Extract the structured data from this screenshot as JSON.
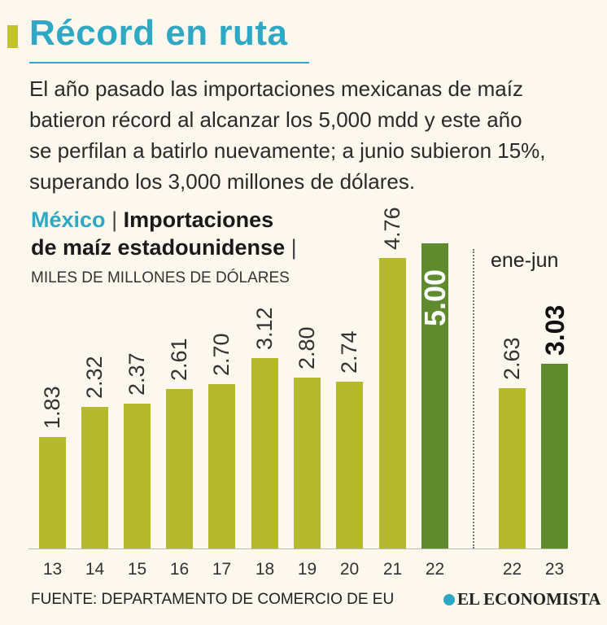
{
  "header": {
    "title": "Récord en ruta",
    "lede_lines": [
      "El año pasado las importaciones mexicanas de maíz",
      "batieron récord al alcanzar los 5,000 mdd y este año",
      "se perfilan a batirlo nuevamente; a junio subieron 15%,",
      "superando los 3,000 millones de dólares."
    ]
  },
  "subhead": {
    "country": "México",
    "separator": "|",
    "line1": "Importaciones",
    "line2": "de maíz estadounidense",
    "units": "MILES DE MILLONES DE DÓLARES"
  },
  "footer": {
    "source": "FUENTE: DEPARTAMENTO DE COMERCIO DE EU",
    "brand": "EL ECONOMISTA"
  },
  "colors": {
    "title": "#2ea8c4",
    "bar_light": "#b5b92d",
    "bar_dark": "#5f8a2e",
    "background": "#fcf8ee"
  },
  "chart_data": [
    {
      "type": "bar",
      "title": "México | Importaciones de maíz estadounidense",
      "ylabel": "MILES DE MILLONES DE DÓLARES",
      "xlabel": "",
      "categories": [
        "13",
        "14",
        "15",
        "16",
        "17",
        "18",
        "19",
        "20",
        "21",
        "22"
      ],
      "values": [
        1.83,
        2.32,
        2.37,
        2.61,
        2.7,
        3.12,
        2.8,
        2.74,
        4.76,
        5.0
      ],
      "labels": [
        "1.83",
        "2.32",
        "2.37",
        "2.61",
        "2.70",
        "3.12",
        "2.80",
        "2.74",
        "4.76",
        "5.00"
      ],
      "highlight": [
        "22"
      ],
      "ylim": [
        0,
        5
      ]
    },
    {
      "type": "bar",
      "title": "ene-jun",
      "categories": [
        "22",
        "23"
      ],
      "values": [
        2.63,
        3.03
      ],
      "labels": [
        "2.63",
        "3.03"
      ],
      "highlight": [
        "23"
      ],
      "ylim": [
        0,
        5
      ]
    }
  ]
}
